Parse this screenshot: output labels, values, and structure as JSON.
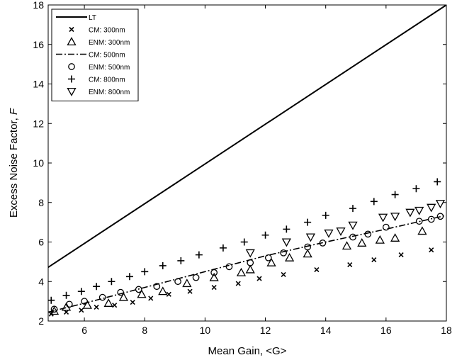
{
  "chart_data": {
    "type": "line",
    "title": "",
    "xlabel": "Mean Gain, <G>",
    "ylabel_main": "Excess Noise Factor, ",
    "ylabel_var": "F",
    "xlim": [
      4.8,
      18
    ],
    "ylim": [
      2,
      18
    ],
    "xticks": [
      6,
      8,
      10,
      12,
      14,
      16,
      18
    ],
    "yticks": [
      2,
      4,
      6,
      8,
      10,
      12,
      14,
      16,
      18
    ],
    "grid": false,
    "legend_position": "top-left",
    "series": [
      {
        "name": "LT",
        "style": "solid-line",
        "x": [
          4.8,
          18
        ],
        "y": [
          4.72,
          18.0
        ]
      },
      {
        "name": "CM: 300nm",
        "style": "x-marker",
        "x": [
          4.9,
          5.4,
          5.9,
          6.4,
          7.0,
          7.6,
          8.2,
          8.8,
          9.5,
          10.3,
          11.1,
          11.8,
          12.6,
          13.7,
          14.8,
          15.6,
          16.5,
          17.5
        ],
        "y": [
          2.35,
          2.45,
          2.55,
          2.7,
          2.8,
          2.95,
          3.15,
          3.35,
          3.5,
          3.7,
          3.9,
          4.15,
          4.35,
          4.6,
          4.85,
          5.1,
          5.35,
          5.6
        ]
      },
      {
        "name": "ENM: 300nm",
        "style": "triangle-up-marker",
        "x": [
          5.0,
          5.4,
          6.1,
          6.8,
          7.3,
          7.9,
          8.6,
          9.4,
          10.3,
          11.2,
          11.5,
          12.2,
          12.8,
          13.4,
          14.7,
          15.2,
          15.8,
          16.3,
          17.2
        ],
        "y": [
          2.5,
          2.7,
          2.8,
          2.9,
          3.2,
          3.35,
          3.5,
          3.9,
          4.2,
          4.45,
          4.6,
          4.95,
          5.2,
          5.4,
          5.8,
          5.95,
          6.1,
          6.2,
          6.55
        ]
      },
      {
        "name": "CM: 500nm",
        "style": "dash-dot-line",
        "x": [
          4.8,
          6,
          8,
          10,
          12,
          14,
          16,
          18
        ],
        "y": [
          2.45,
          2.9,
          3.7,
          4.5,
          5.3,
          6.0,
          6.65,
          7.35
        ]
      },
      {
        "name": "ENM: 500nm",
        "style": "circle-marker",
        "x": [
          5.0,
          5.5,
          6.0,
          6.6,
          7.2,
          7.8,
          8.4,
          9.1,
          9.7,
          10.3,
          10.8,
          11.5,
          12.1,
          12.6,
          13.4,
          13.9,
          14.9,
          15.4,
          16.0,
          17.1,
          17.5,
          17.8
        ],
        "y": [
          2.6,
          2.85,
          3.0,
          3.2,
          3.45,
          3.6,
          3.75,
          4.0,
          4.2,
          4.45,
          4.75,
          4.95,
          5.2,
          5.45,
          5.75,
          5.95,
          6.25,
          6.4,
          6.75,
          7.05,
          7.15,
          7.3
        ]
      },
      {
        "name": "CM: 800nm",
        "style": "plus-marker",
        "x": [
          4.9,
          5.4,
          5.9,
          6.4,
          6.9,
          7.5,
          8.0,
          8.6,
          9.2,
          9.8,
          10.6,
          11.3,
          12.0,
          12.7,
          13.4,
          14.0,
          14.9,
          15.6,
          16.3,
          17.0,
          17.7
        ],
        "y": [
          3.05,
          3.3,
          3.5,
          3.75,
          4.0,
          4.25,
          4.5,
          4.8,
          5.05,
          5.35,
          5.7,
          6.0,
          6.35,
          6.65,
          7.0,
          7.35,
          7.7,
          8.05,
          8.4,
          8.7,
          9.05
        ]
      },
      {
        "name": "ENM: 800nm",
        "style": "triangle-down-marker",
        "x": [
          11.5,
          12.7,
          13.5,
          14.1,
          14.5,
          14.9,
          15.9,
          16.3,
          16.8,
          17.1,
          17.5,
          17.8
        ],
        "y": [
          5.45,
          6.0,
          6.25,
          6.45,
          6.55,
          6.85,
          7.25,
          7.3,
          7.5,
          7.6,
          7.75,
          7.95
        ]
      }
    ]
  }
}
